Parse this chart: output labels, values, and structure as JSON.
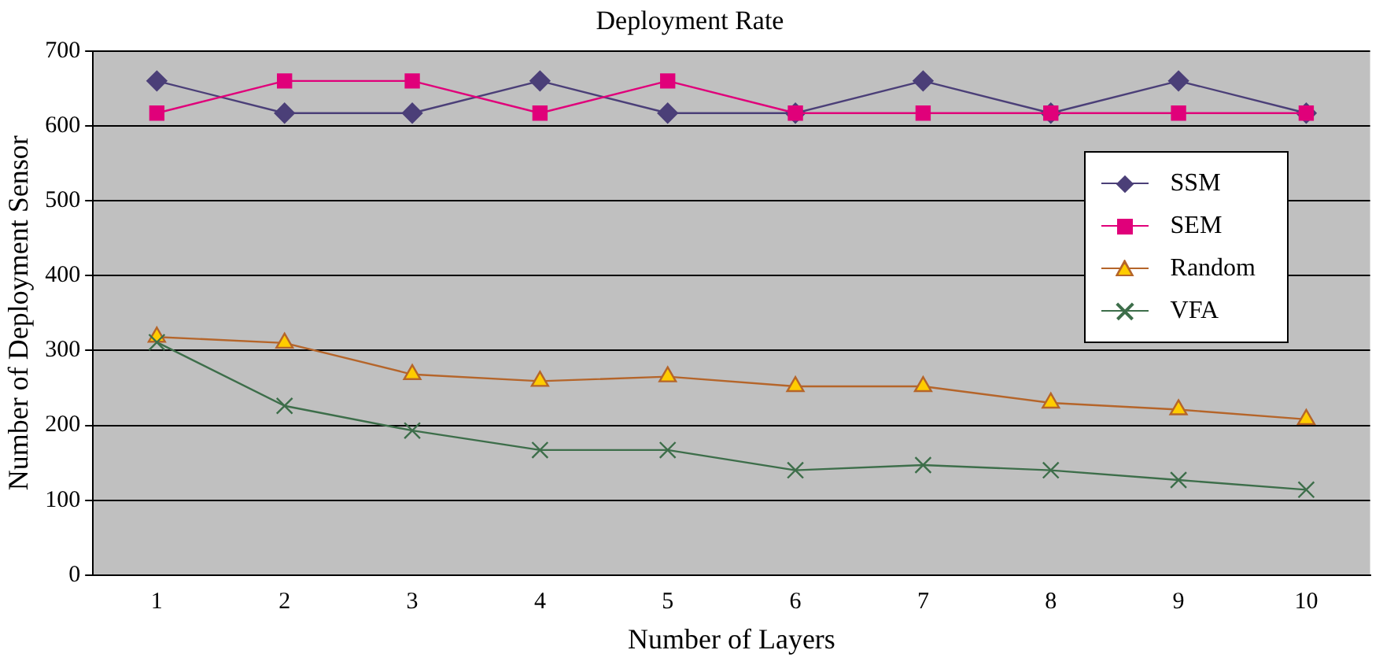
{
  "chart_data": {
    "type": "line",
    "title": "Deployment Rate",
    "xlabel": "Number of Layers",
    "ylabel": "Number of Deployment Sensor",
    "categories": [
      "1",
      "2",
      "3",
      "4",
      "5",
      "6",
      "7",
      "8",
      "9",
      "10"
    ],
    "ylim": [
      0,
      700
    ],
    "yticks": [
      0,
      100,
      200,
      300,
      400,
      500,
      600,
      700
    ],
    "grid": "y",
    "legend": "top right",
    "series": [
      {
        "name": "SSM",
        "color": "#4b3f78",
        "marker": "diamond",
        "values": [
          660,
          617,
          617,
          660,
          617,
          617,
          660,
          617,
          660,
          617
        ]
      },
      {
        "name": "SEM",
        "color": "#e0007a",
        "marker": "square",
        "values": [
          617,
          660,
          660,
          617,
          660,
          617,
          617,
          617,
          617,
          617
        ]
      },
      {
        "name": "Random",
        "color": "#b5652a",
        "marker": "triangle",
        "values": [
          318,
          310,
          268,
          259,
          265,
          252,
          252,
          230,
          221,
          208
        ]
      },
      {
        "name": "VFA",
        "color": "#3d6e4a",
        "marker": "cross",
        "values": [
          311,
          226,
          193,
          167,
          167,
          140,
          147,
          140,
          127,
          114
        ]
      }
    ]
  }
}
